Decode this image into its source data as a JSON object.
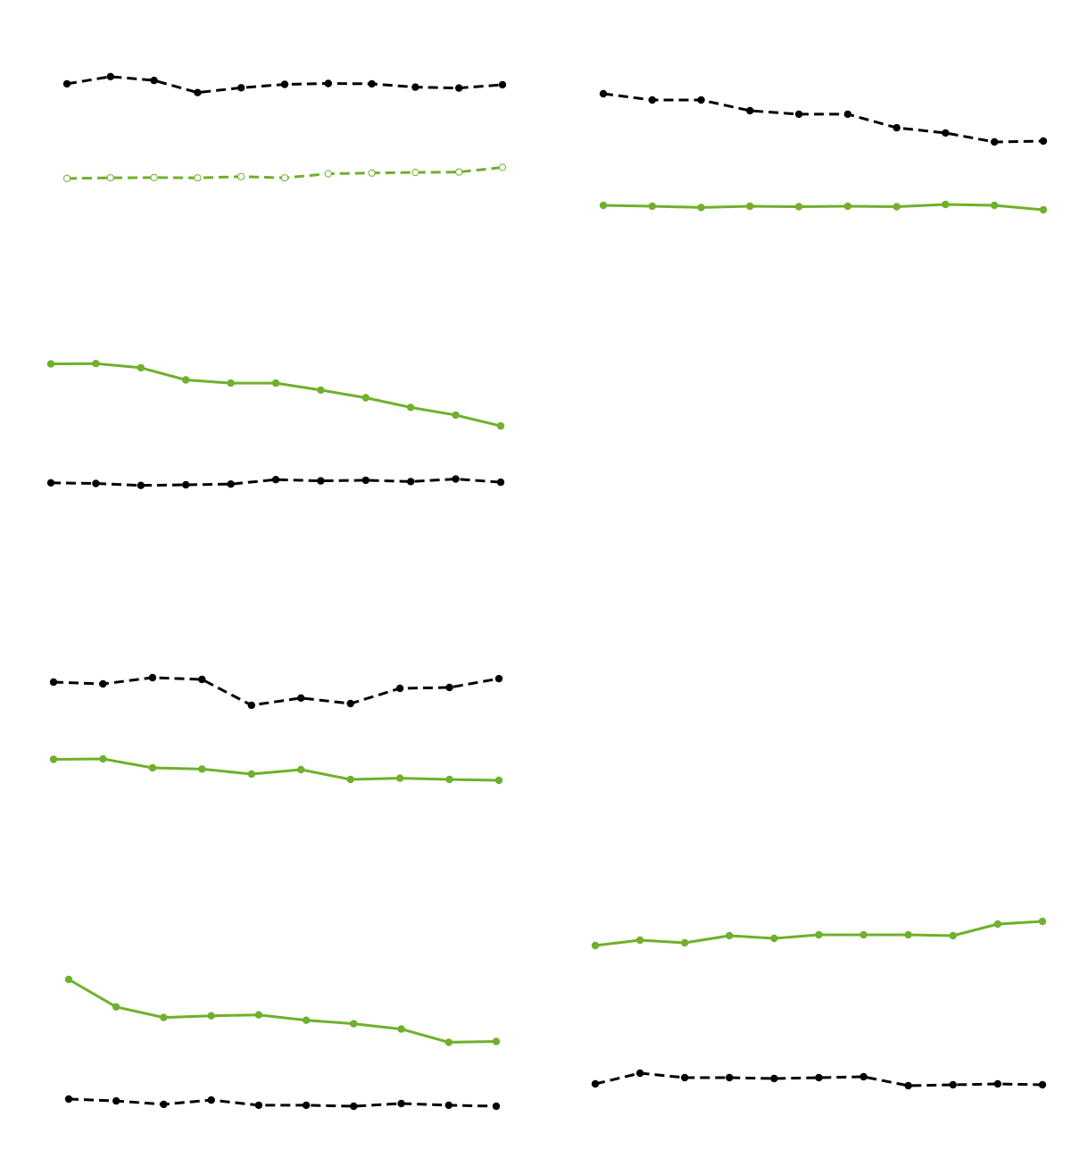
{
  "colors": {
    "black": "#000000",
    "green": "#6fb02c",
    "background": "#ffffff"
  },
  "chart_data": [
    {
      "panel": "top-left",
      "type": "line",
      "ylim": [
        0,
        100
      ],
      "series": [
        {
          "color": "black",
          "line": "dashed",
          "marker": "filled-circle",
          "values": [
            92.7,
            98.7,
            95.5,
            85.5,
            89.5,
            92.3,
            93.0,
            92.7,
            90.0,
            89.3,
            92.0
          ]
        },
        {
          "color": "green",
          "line": "dashed",
          "marker": "hollow-circle",
          "values": [
            14.8,
            15.3,
            15.5,
            15.3,
            16.3,
            15.3,
            18.7,
            19.3,
            19.8,
            20.1,
            23.9
          ]
        }
      ]
    },
    {
      "panel": "top-right",
      "type": "line",
      "ylim": [
        0,
        100
      ],
      "series": [
        {
          "color": "black",
          "line": "dashed",
          "marker": "filled-circle",
          "values": [
            99.3,
            94.3,
            94.3,
            85.7,
            82.9,
            82.9,
            72.1,
            67.9,
            60.7,
            61.4
          ]
        },
        {
          "color": "green",
          "line": "solid",
          "marker": "filled-circle",
          "values": [
            10.0,
            9.3,
            8.3,
            9.3,
            8.9,
            9.3,
            8.9,
            10.7,
            10.0,
            6.4
          ]
        }
      ]
    },
    {
      "panel": "middle-left",
      "type": "line",
      "ylim": [
        0,
        100
      ],
      "series": [
        {
          "color": "green",
          "line": "solid",
          "marker": "filled-circle",
          "values": [
            96.9,
            97.2,
            93.2,
            81.5,
            78.4,
            78.4,
            71.6,
            64.2,
            54.9,
            47.5,
            37.0
          ]
        },
        {
          "color": "black",
          "line": "dashed",
          "marker": "filled-circle",
          "values": [
            -17.9,
            -18.5,
            -20.4,
            -19.8,
            -19.1,
            -14.8,
            -16.0,
            -15.4,
            -16.7,
            -14.2,
            -17.3
          ]
        }
      ]
    },
    {
      "panel": "lower-left",
      "type": "line",
      "ylim": [
        0,
        100
      ],
      "series": [
        {
          "color": "black",
          "line": "dashed",
          "marker": "filled-circle",
          "values": [
            97.8,
            96.3,
            101.5,
            100.0,
            78.6,
            84.6,
            80.0,
            92.6,
            93.3,
            100.7
          ]
        },
        {
          "color": "green",
          "line": "solid",
          "marker": "filled-circle",
          "values": [
            33.7,
            34.1,
            26.7,
            25.6,
            21.5,
            25.2,
            17.0,
            18.1,
            17.0,
            16.3
          ]
        }
      ]
    },
    {
      "panel": "bottom-left",
      "type": "line",
      "ylim": [
        0,
        100
      ],
      "series": [
        {
          "color": "green",
          "line": "solid",
          "marker": "filled-circle",
          "values": [
            99.3,
            77.1,
            68.6,
            70.0,
            70.7,
            66.4,
            63.6,
            59.3,
            48.6,
            49.3
          ]
        },
        {
          "color": "black",
          "line": "dashed",
          "marker": "filled-circle",
          "values": [
            2.9,
            1.4,
            -1.4,
            2.1,
            -2.1,
            -2.1,
            -2.9,
            -0.7,
            -2.1,
            -2.9
          ]
        }
      ]
    },
    {
      "panel": "bottom-right",
      "type": "line",
      "ylim": [
        0,
        100
      ],
      "series": [
        {
          "color": "green",
          "line": "solid",
          "marker": "filled-circle",
          "values": [
            83.0,
            86.0,
            84.5,
            88.5,
            87.0,
            89.0,
            89.0,
            89.0,
            88.5,
            95.0,
            96.5
          ]
        },
        {
          "color": "black",
          "line": "dashed",
          "marker": "filled-circle",
          "values": [
            5.5,
            11.5,
            9.0,
            9.0,
            8.5,
            9.0,
            9.5,
            4.5,
            5.0,
            5.5,
            5.0
          ]
        }
      ]
    }
  ]
}
